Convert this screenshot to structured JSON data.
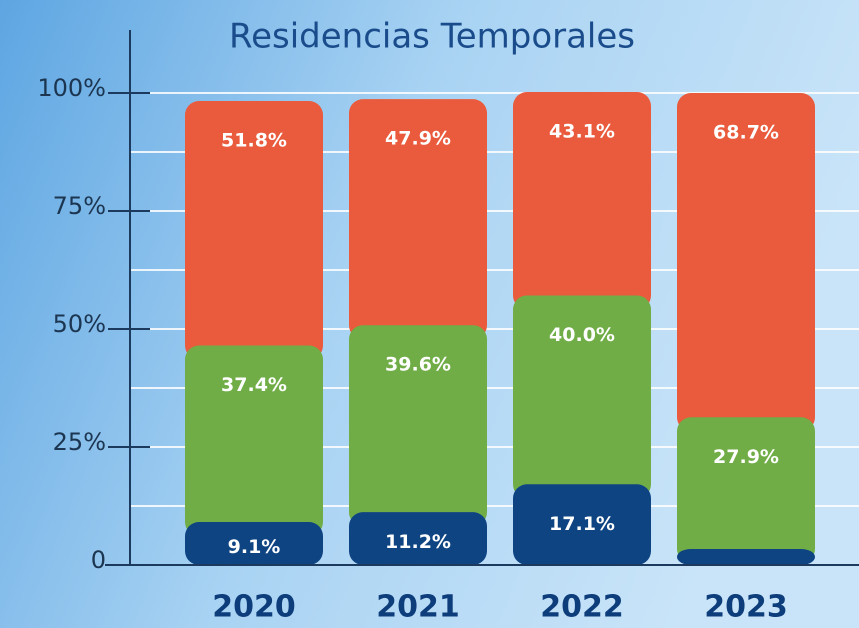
{
  "chart_data": {
    "type": "stacked_bar",
    "title": "Residencias Temporales",
    "categories": [
      "2020",
      "2021",
      "2022",
      "2023"
    ],
    "series": [
      {
        "color": "#0f4483",
        "values": [
          9.1,
          11.2,
          17.1,
          3.4
        ],
        "value_labels": [
          "9.1%",
          "11.2%",
          "17.1%",
          null
        ]
      },
      {
        "color": "#70ad47",
        "values": [
          37.4,
          39.6,
          40.0,
          27.9
        ],
        "value_labels": [
          "37.4%",
          "39.6%",
          "40.0%",
          "27.9%"
        ]
      },
      {
        "color": "#e95b3c",
        "values": [
          51.8,
          47.9,
          43.1,
          68.7
        ],
        "value_labels": [
          "51.8%",
          "47.9%",
          "43.1%",
          "68.7%"
        ]
      }
    ],
    "ylim": [
      0,
      100
    ],
    "yticks": [
      0,
      {
        "value": 25,
        "label": "25%"
      },
      {
        "value": 50,
        "label": "50%"
      },
      {
        "value": 75,
        "label": "75%"
      },
      {
        "value": 100,
        "label": "100%"
      }
    ],
    "grid": true
  }
}
